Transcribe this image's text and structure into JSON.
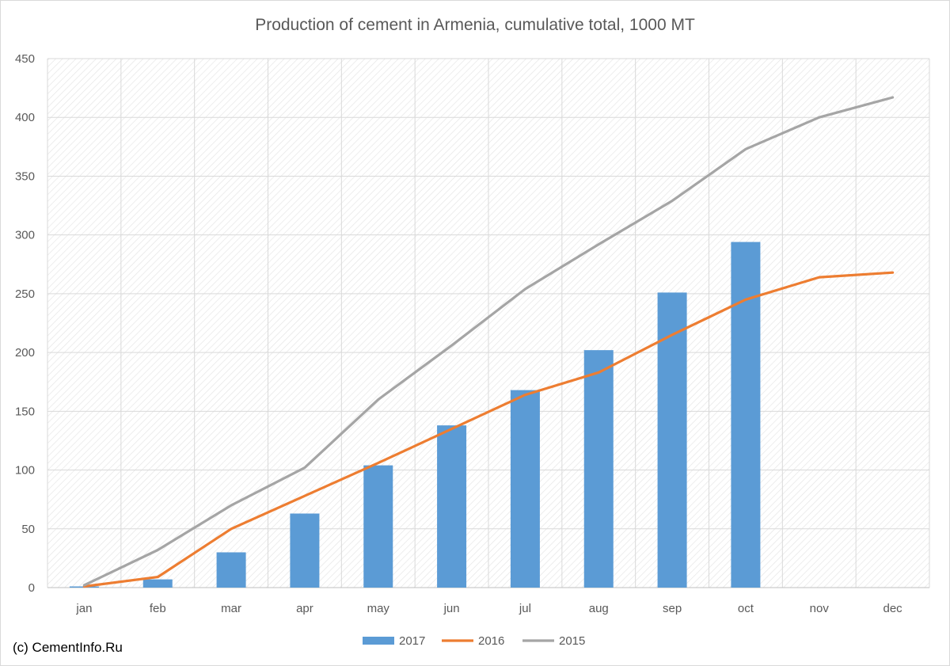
{
  "chart_data": {
    "type": "bar",
    "title": "Production of cement in Armenia, cumulative total, 1000 MT",
    "xlabel": "",
    "ylabel": "",
    "categories": [
      "jan",
      "feb",
      "mar",
      "apr",
      "may",
      "jun",
      "jul",
      "aug",
      "sep",
      "oct",
      "nov",
      "dec"
    ],
    "ylim": [
      0,
      450
    ],
    "yticks": [
      0,
      50,
      100,
      150,
      200,
      250,
      300,
      350,
      400,
      450
    ],
    "grid": true,
    "legend_position": "bottom",
    "series": [
      {
        "name": "2017",
        "type": "bar",
        "color": "#5b9bd5",
        "values": [
          1,
          7,
          30,
          63,
          104,
          138,
          168,
          202,
          251,
          294,
          null,
          null
        ]
      },
      {
        "name": "2016",
        "type": "line",
        "color": "#ed7d31",
        "values": [
          1,
          9,
          50,
          78,
          106,
          135,
          164,
          183,
          215,
          245,
          264,
          268
        ]
      },
      {
        "name": "2015",
        "type": "line",
        "color": "#a5a5a5",
        "values": [
          2,
          32,
          70,
          102,
          160,
          206,
          254,
          292,
          329,
          373,
          400,
          417
        ]
      }
    ]
  },
  "footer": {
    "credit": "(c) CementInfo.Ru"
  }
}
